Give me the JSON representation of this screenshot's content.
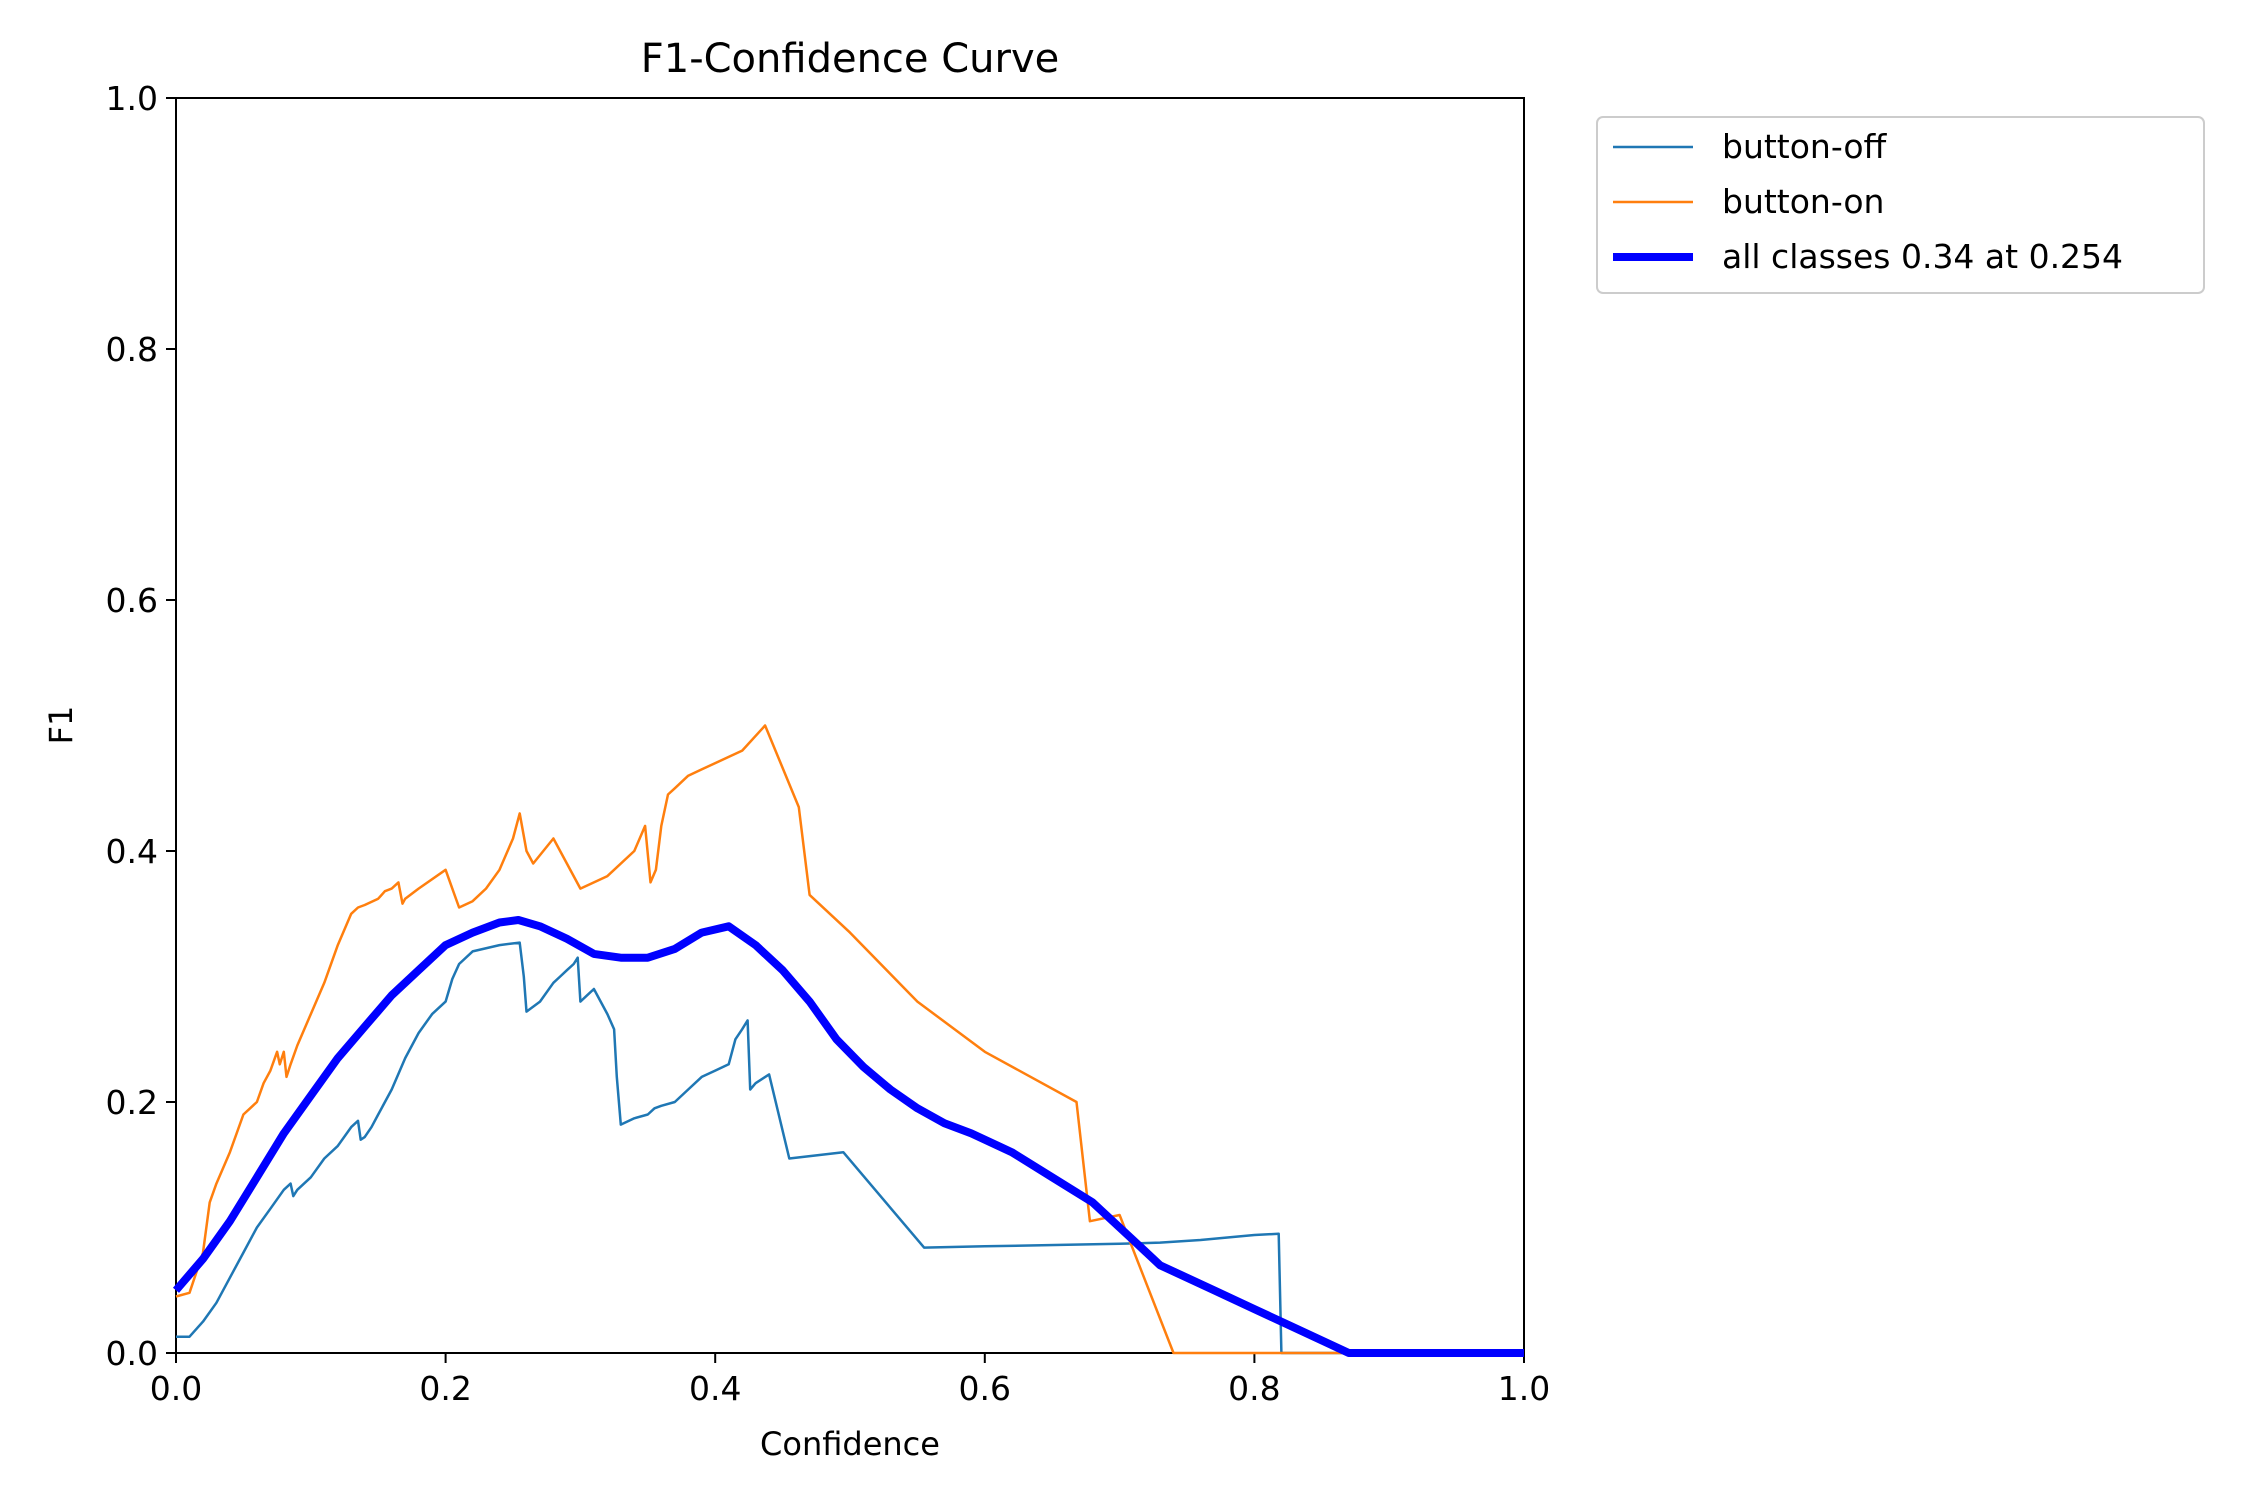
{
  "chart_data": {
    "type": "line",
    "title": "F1-Confidence Curve",
    "xlabel": "Confidence",
    "ylabel": "F1",
    "xlim": [
      0,
      1
    ],
    "ylim": [
      0,
      1
    ],
    "xticks": [
      "0.0",
      "0.2",
      "0.4",
      "0.6",
      "0.8",
      "1.0"
    ],
    "yticks": [
      "0.0",
      "0.2",
      "0.4",
      "0.6",
      "0.8",
      "1.0"
    ],
    "grid": false,
    "legend_position": "outside upper right",
    "series": [
      {
        "name": "button-off",
        "color": "#1f77b4",
        "width": "thin",
        "x": [
          0.0,
          0.01,
          0.02,
          0.03,
          0.04,
          0.05,
          0.06,
          0.07,
          0.08,
          0.085,
          0.087,
          0.09,
          0.1,
          0.11,
          0.12,
          0.13,
          0.135,
          0.137,
          0.14,
          0.145,
          0.15,
          0.16,
          0.17,
          0.18,
          0.19,
          0.2,
          0.205,
          0.21,
          0.22,
          0.24,
          0.255,
          0.258,
          0.26,
          0.27,
          0.28,
          0.285,
          0.29,
          0.295,
          0.298,
          0.3,
          0.305,
          0.31,
          0.32,
          0.325,
          0.327,
          0.33,
          0.34,
          0.35,
          0.355,
          0.36,
          0.37,
          0.38,
          0.39,
          0.4,
          0.41,
          0.415,
          0.42,
          0.424,
          0.426,
          0.43,
          0.44,
          0.455,
          0.495,
          0.555,
          0.6,
          0.7,
          0.73,
          0.76,
          0.8,
          0.818,
          0.82,
          0.9,
          1.0
        ],
        "y": [
          0.013,
          0.013,
          0.025,
          0.04,
          0.06,
          0.08,
          0.1,
          0.115,
          0.13,
          0.135,
          0.125,
          0.13,
          0.14,
          0.155,
          0.165,
          0.18,
          0.185,
          0.17,
          0.172,
          0.18,
          0.19,
          0.21,
          0.235,
          0.255,
          0.27,
          0.28,
          0.298,
          0.31,
          0.32,
          0.325,
          0.327,
          0.3,
          0.272,
          0.28,
          0.295,
          0.3,
          0.305,
          0.31,
          0.315,
          0.28,
          0.285,
          0.29,
          0.27,
          0.258,
          0.22,
          0.182,
          0.187,
          0.19,
          0.195,
          0.197,
          0.2,
          0.21,
          0.22,
          0.225,
          0.23,
          0.25,
          0.258,
          0.265,
          0.21,
          0.215,
          0.222,
          0.155,
          0.16,
          0.084,
          0.085,
          0.087,
          0.088,
          0.09,
          0.094,
          0.095,
          0.0,
          0.0,
          0.0
        ]
      },
      {
        "name": "button-on",
        "color": "#ff7f0e",
        "width": "thin",
        "x": [
          0.0,
          0.01,
          0.02,
          0.025,
          0.03,
          0.04,
          0.05,
          0.055,
          0.06,
          0.065,
          0.07,
          0.075,
          0.077,
          0.08,
          0.082,
          0.085,
          0.09,
          0.1,
          0.11,
          0.12,
          0.13,
          0.135,
          0.14,
          0.15,
          0.155,
          0.16,
          0.165,
          0.168,
          0.17,
          0.18,
          0.2,
          0.205,
          0.21,
          0.22,
          0.23,
          0.24,
          0.25,
          0.255,
          0.26,
          0.265,
          0.28,
          0.3,
          0.32,
          0.34,
          0.348,
          0.352,
          0.356,
          0.36,
          0.365,
          0.37,
          0.38,
          0.39,
          0.41,
          0.42,
          0.437,
          0.462,
          0.47,
          0.5,
          0.55,
          0.6,
          0.668,
          0.678,
          0.7,
          0.74,
          0.8,
          0.9,
          1.0
        ],
        "y": [
          0.045,
          0.048,
          0.08,
          0.12,
          0.135,
          0.16,
          0.19,
          0.195,
          0.2,
          0.215,
          0.225,
          0.24,
          0.23,
          0.24,
          0.22,
          0.23,
          0.245,
          0.27,
          0.295,
          0.325,
          0.35,
          0.355,
          0.357,
          0.362,
          0.368,
          0.37,
          0.375,
          0.358,
          0.362,
          0.37,
          0.385,
          0.37,
          0.355,
          0.36,
          0.37,
          0.385,
          0.41,
          0.43,
          0.4,
          0.39,
          0.41,
          0.37,
          0.38,
          0.4,
          0.42,
          0.375,
          0.385,
          0.42,
          0.445,
          0.45,
          0.46,
          0.465,
          0.475,
          0.48,
          0.5,
          0.435,
          0.365,
          0.335,
          0.28,
          0.24,
          0.2,
          0.105,
          0.11,
          0.0,
          0.0,
          0.0,
          0.0
        ]
      },
      {
        "name": "all classes 0.34 at 0.254",
        "color": "#0000ff",
        "width": "thick",
        "x": [
          0.0,
          0.02,
          0.04,
          0.06,
          0.08,
          0.1,
          0.12,
          0.14,
          0.16,
          0.18,
          0.2,
          0.22,
          0.24,
          0.254,
          0.27,
          0.29,
          0.31,
          0.33,
          0.35,
          0.37,
          0.39,
          0.41,
          0.43,
          0.45,
          0.47,
          0.49,
          0.51,
          0.53,
          0.55,
          0.57,
          0.59,
          0.62,
          0.65,
          0.68,
          0.71,
          0.73,
          0.77,
          0.8,
          0.83,
          0.87,
          0.9,
          1.0
        ],
        "y": [
          0.05,
          0.075,
          0.105,
          0.14,
          0.175,
          0.205,
          0.235,
          0.26,
          0.285,
          0.305,
          0.325,
          0.335,
          0.343,
          0.345,
          0.34,
          0.33,
          0.318,
          0.315,
          0.315,
          0.322,
          0.335,
          0.34,
          0.325,
          0.305,
          0.28,
          0.25,
          0.228,
          0.21,
          0.195,
          0.183,
          0.175,
          0.16,
          0.14,
          0.12,
          0.09,
          0.07,
          0.05,
          0.035,
          0.02,
          0.0,
          0.0,
          0.0
        ]
      }
    ]
  }
}
